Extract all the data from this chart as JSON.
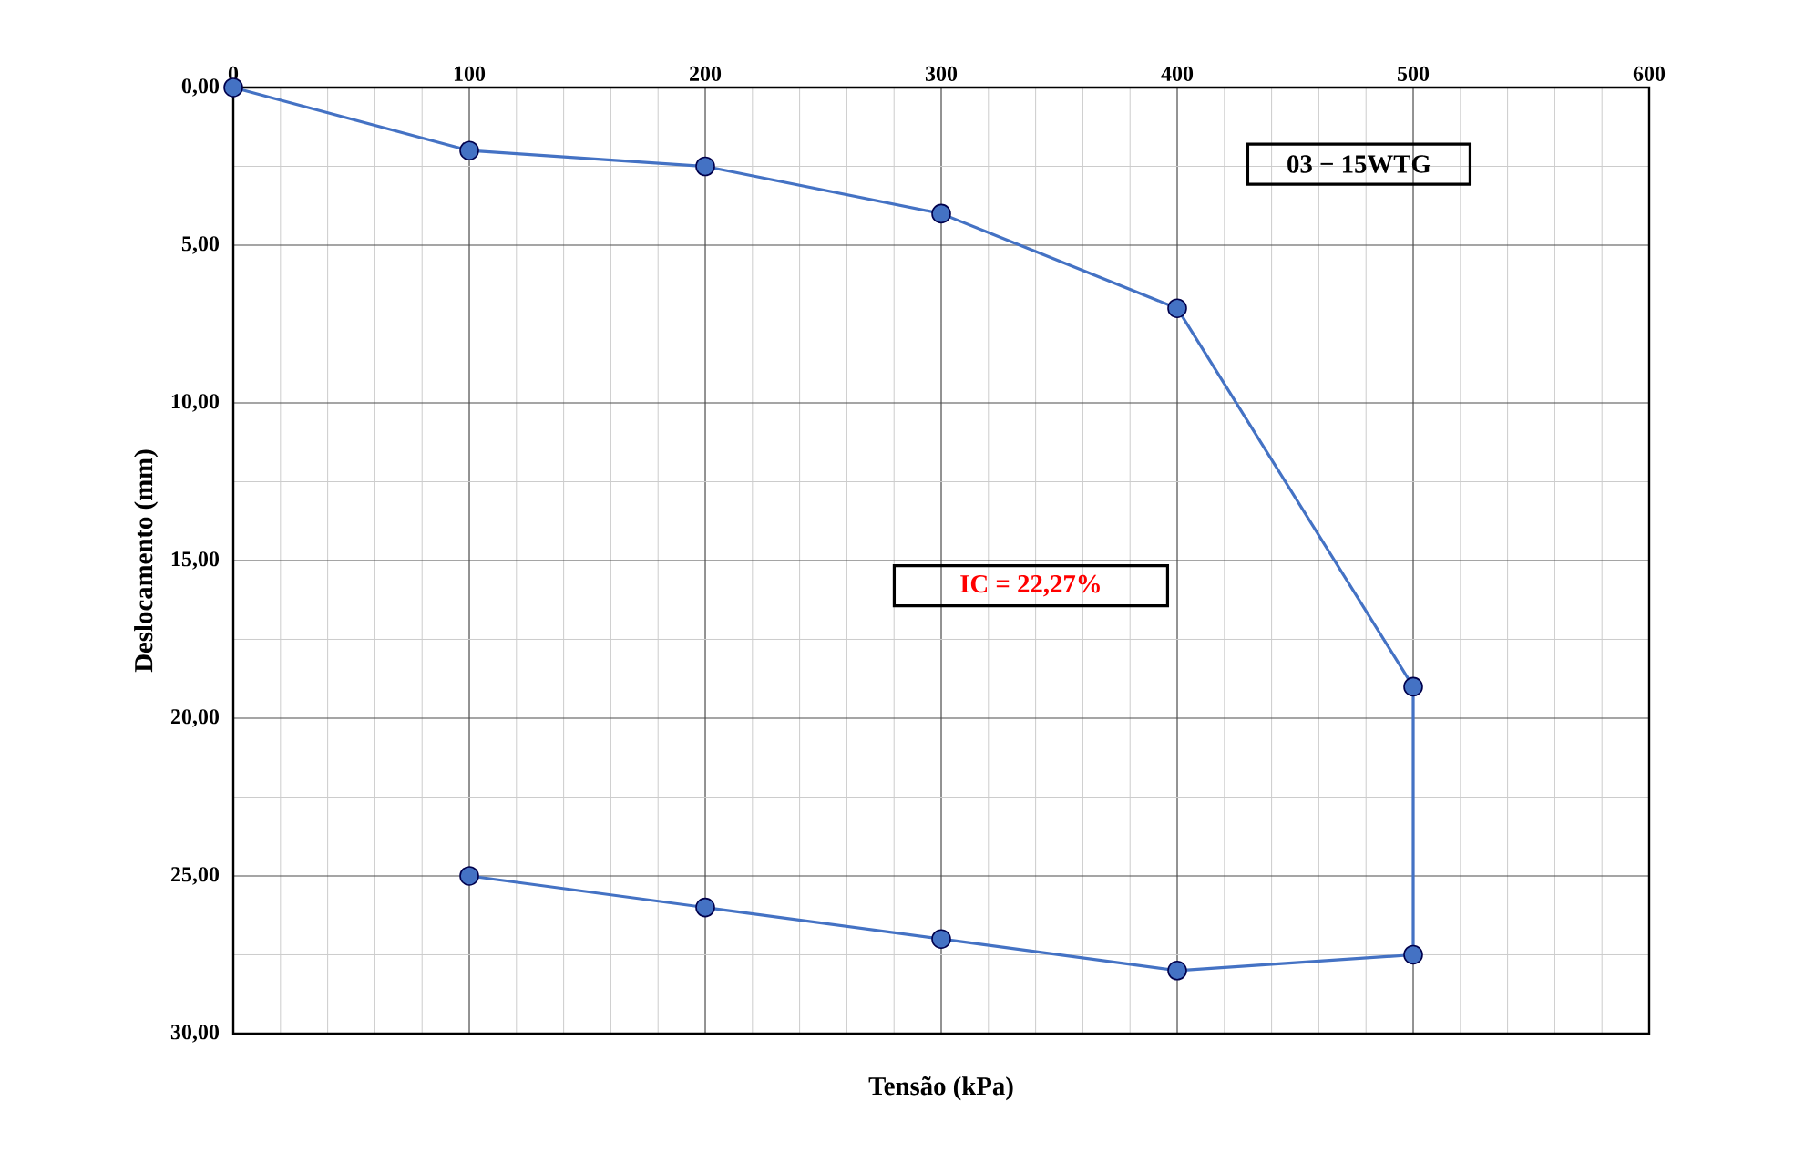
{
  "chart_data": {
    "type": "line",
    "xlabel": "Tensão  (kPa)",
    "ylabel": "Deslocamento (mm)",
    "x": [
      0,
      100,
      200,
      300,
      400,
      500,
      500,
      400,
      300,
      200,
      100
    ],
    "series": [
      {
        "color": "#4472c4",
        "values": [
          0,
          2,
          2.5,
          4,
          7,
          19,
          27.5,
          28,
          27,
          26,
          25
        ]
      }
    ],
    "xlim": [
      0,
      600
    ],
    "ylim": [
      30,
      0
    ],
    "xticks": [
      0,
      100,
      200,
      300,
      400,
      500,
      600
    ],
    "yticks": [
      {
        "value": 0,
        "label": "0,00"
      },
      {
        "value": 5,
        "label": "5,00"
      },
      {
        "value": 10,
        "label": "10,00"
      },
      {
        "value": 15,
        "label": "15,00"
      },
      {
        "value": 20,
        "label": "20,00"
      },
      {
        "value": 25,
        "label": "25,00"
      },
      {
        "value": 30,
        "label": "30,00"
      }
    ],
    "grid": true,
    "marker": "circle",
    "line_style": "solid",
    "annotations": [
      "03 − 15WTG",
      "IC = 22,27%"
    ]
  }
}
